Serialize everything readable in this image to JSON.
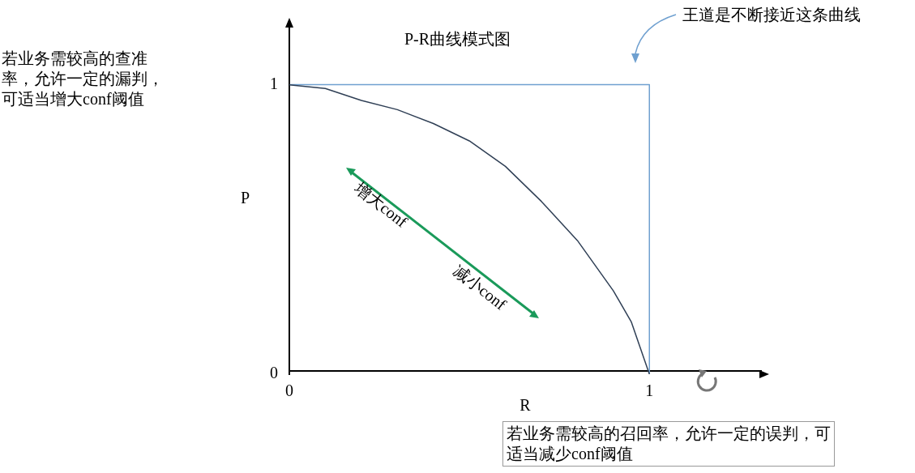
{
  "chart_data": {
    "type": "line",
    "title": "P-R曲线模式图",
    "xlabel": "R",
    "ylabel": "P",
    "xlim": [
      0,
      1.31
    ],
    "ylim": [
      0,
      1.22
    ],
    "xticks": [
      0,
      1
    ],
    "yticks": [
      0,
      1
    ],
    "grid": false,
    "legend": false,
    "marker": "none",
    "line_style": "solid",
    "series": [
      {
        "color": "#2f3f55",
        "x": [
          0,
          0.1,
          0.2,
          0.3,
          0.4,
          0.5,
          0.6,
          0.7,
          0.8,
          0.9,
          0.95,
          1
        ],
        "values": [
          1,
          0.987,
          0.946,
          0.914,
          0.866,
          0.806,
          0.718,
          0.597,
          0.462,
          0.288,
          0.18,
          0
        ]
      },
      {
        "color": "#6fa0d0",
        "x": [
          0,
          1,
          1
        ],
        "values": [
          1,
          1,
          0
        ]
      }
    ],
    "annotations": [
      "王道是不断接近这条曲线",
      "若业务需较高的查准率，允许一定的漏判，可适当增大conf阈值",
      "若业务需较高的召回率，允许一定的误判，可适当减少conf阈值",
      "增大conf",
      "减小conf"
    ]
  }
}
